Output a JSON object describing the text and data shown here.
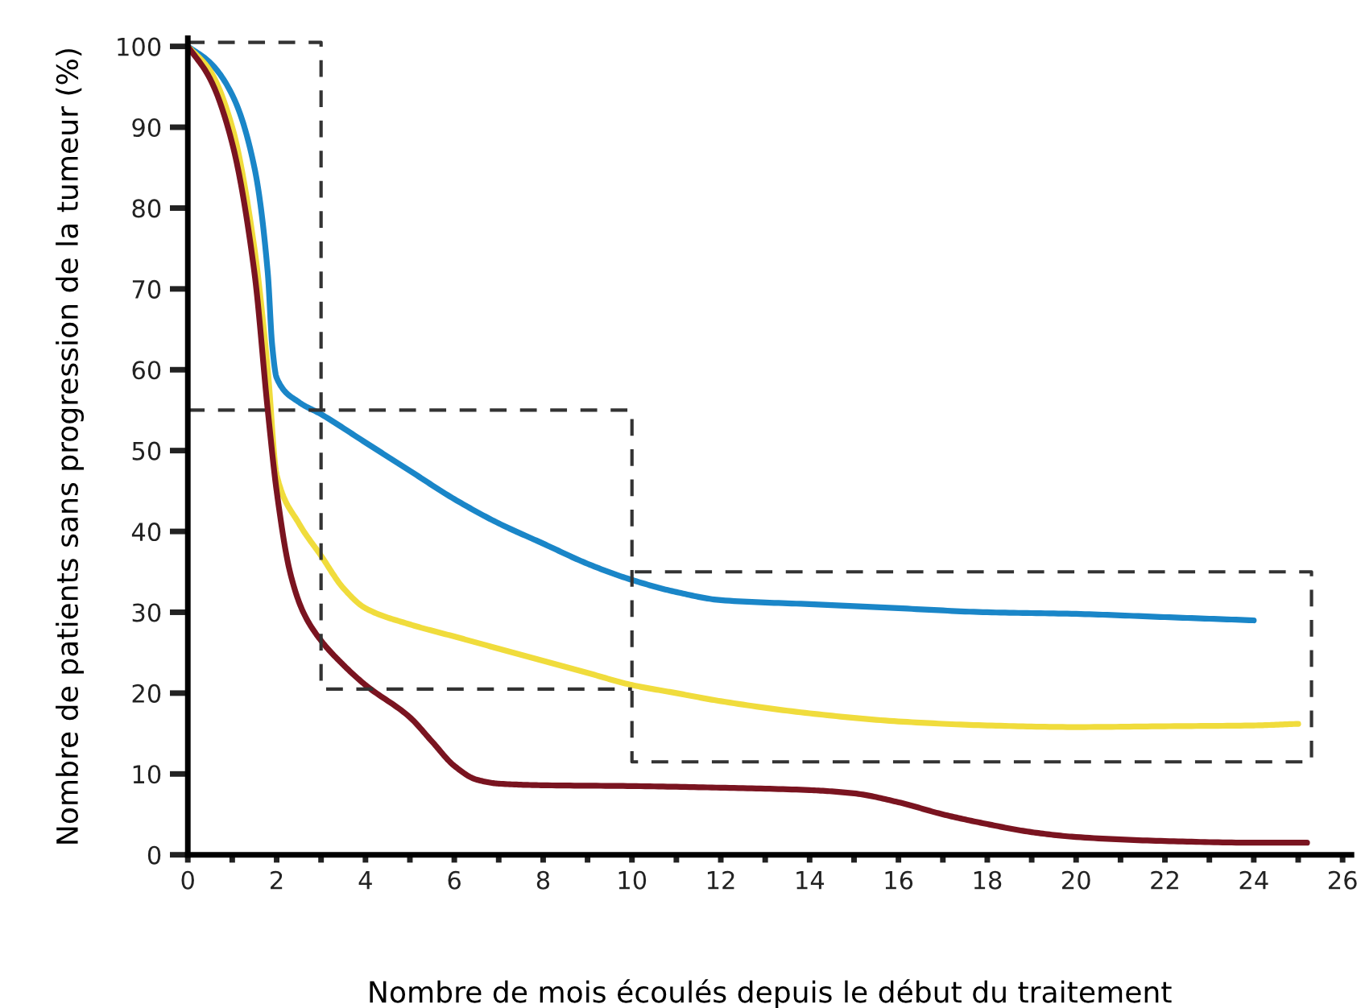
{
  "chart_data": {
    "type": "line",
    "xlabel": "Nombre de mois écoulés depuis le début du traitement",
    "ylabel": "Nombre de patients sans progression de la tumeur (%)",
    "xlim": [
      0,
      26.2
    ],
    "ylim": [
      0,
      101
    ],
    "xticks": [
      0,
      {
        "value": 1,
        "label": null
      },
      2,
      {
        "value": 3,
        "label": null
      },
      4,
      {
        "value": 5,
        "label": null
      },
      6,
      {
        "value": 7,
        "label": null
      },
      8,
      {
        "value": 9,
        "label": null
      },
      10,
      {
        "value": 11,
        "label": null
      },
      12,
      {
        "value": 13,
        "label": null
      },
      14,
      {
        "value": 15,
        "label": null
      },
      16,
      {
        "value": 17,
        "label": null
      },
      18,
      {
        "value": 19,
        "label": null
      },
      20,
      {
        "value": 21,
        "label": null
      },
      22,
      {
        "value": 23,
        "label": null
      },
      24,
      {
        "value": 25,
        "label": null
      },
      26
    ],
    "yticks": [
      0,
      10,
      20,
      30,
      40,
      50,
      60,
      70,
      80,
      90,
      100
    ],
    "grid": false,
    "legend": false,
    "marker": "none",
    "series": [
      {
        "color": "#1a86c8",
        "line_style": "solid",
        "x": [
          0,
          0.5,
          1,
          1.5,
          1.8,
          1.9,
          2,
          2.5,
          3,
          4,
          5,
          6,
          7,
          8,
          9,
          10,
          11,
          12,
          14,
          16,
          18,
          20,
          22,
          24
        ],
        "values": [
          100,
          98,
          94,
          85,
          72,
          63,
          59,
          56,
          54.5,
          51,
          47.5,
          44,
          41,
          38.5,
          36,
          34,
          32.5,
          31.5,
          31,
          30.5,
          30,
          29.8,
          29.4,
          29
        ]
      },
      {
        "color": "#f0dc3c",
        "line_style": "solid",
        "x": [
          0,
          0.5,
          1,
          1.5,
          1.8,
          2,
          2.5,
          3,
          3.5,
          4,
          5,
          6,
          7,
          8,
          9,
          10,
          11,
          12,
          14,
          16,
          18,
          20,
          22,
          24,
          25
        ],
        "values": [
          100,
          97,
          90,
          75,
          60,
          47,
          41,
          37,
          33,
          30.5,
          28.5,
          27,
          25.5,
          24,
          22.5,
          21,
          20,
          19,
          17.5,
          16.5,
          16,
          15.8,
          15.9,
          16,
          16.2
        ]
      },
      {
        "color": "#7a1420",
        "line_style": "solid",
        "x": [
          0,
          0.5,
          1,
          1.5,
          1.8,
          2,
          2.3,
          2.6,
          3,
          3.5,
          4,
          5,
          5.5,
          6,
          6.5,
          7,
          8,
          10,
          12,
          14,
          15,
          16,
          17,
          18,
          19,
          20,
          22,
          24,
          25.2
        ],
        "values": [
          100,
          96,
          88,
          72,
          55,
          45,
          35,
          30,
          26.5,
          23.5,
          21,
          17,
          14,
          11,
          9.3,
          8.8,
          8.6,
          8.5,
          8.3,
          8,
          7.6,
          6.5,
          5,
          3.8,
          2.8,
          2.2,
          1.7,
          1.5,
          1.5
        ]
      },
      {
        "color": "#333333",
        "line_style": "dashed",
        "x": [
          0,
          3,
          3,
          10
        ],
        "values": [
          100.5,
          100.5,
          20.5,
          20.5
        ]
      },
      {
        "color": "#333333",
        "line_style": "dashed",
        "x": [
          0,
          10,
          10,
          25.3,
          25.3,
          10
        ],
        "values": [
          55,
          55,
          11.5,
          11.5,
          35,
          35
        ]
      }
    ]
  }
}
